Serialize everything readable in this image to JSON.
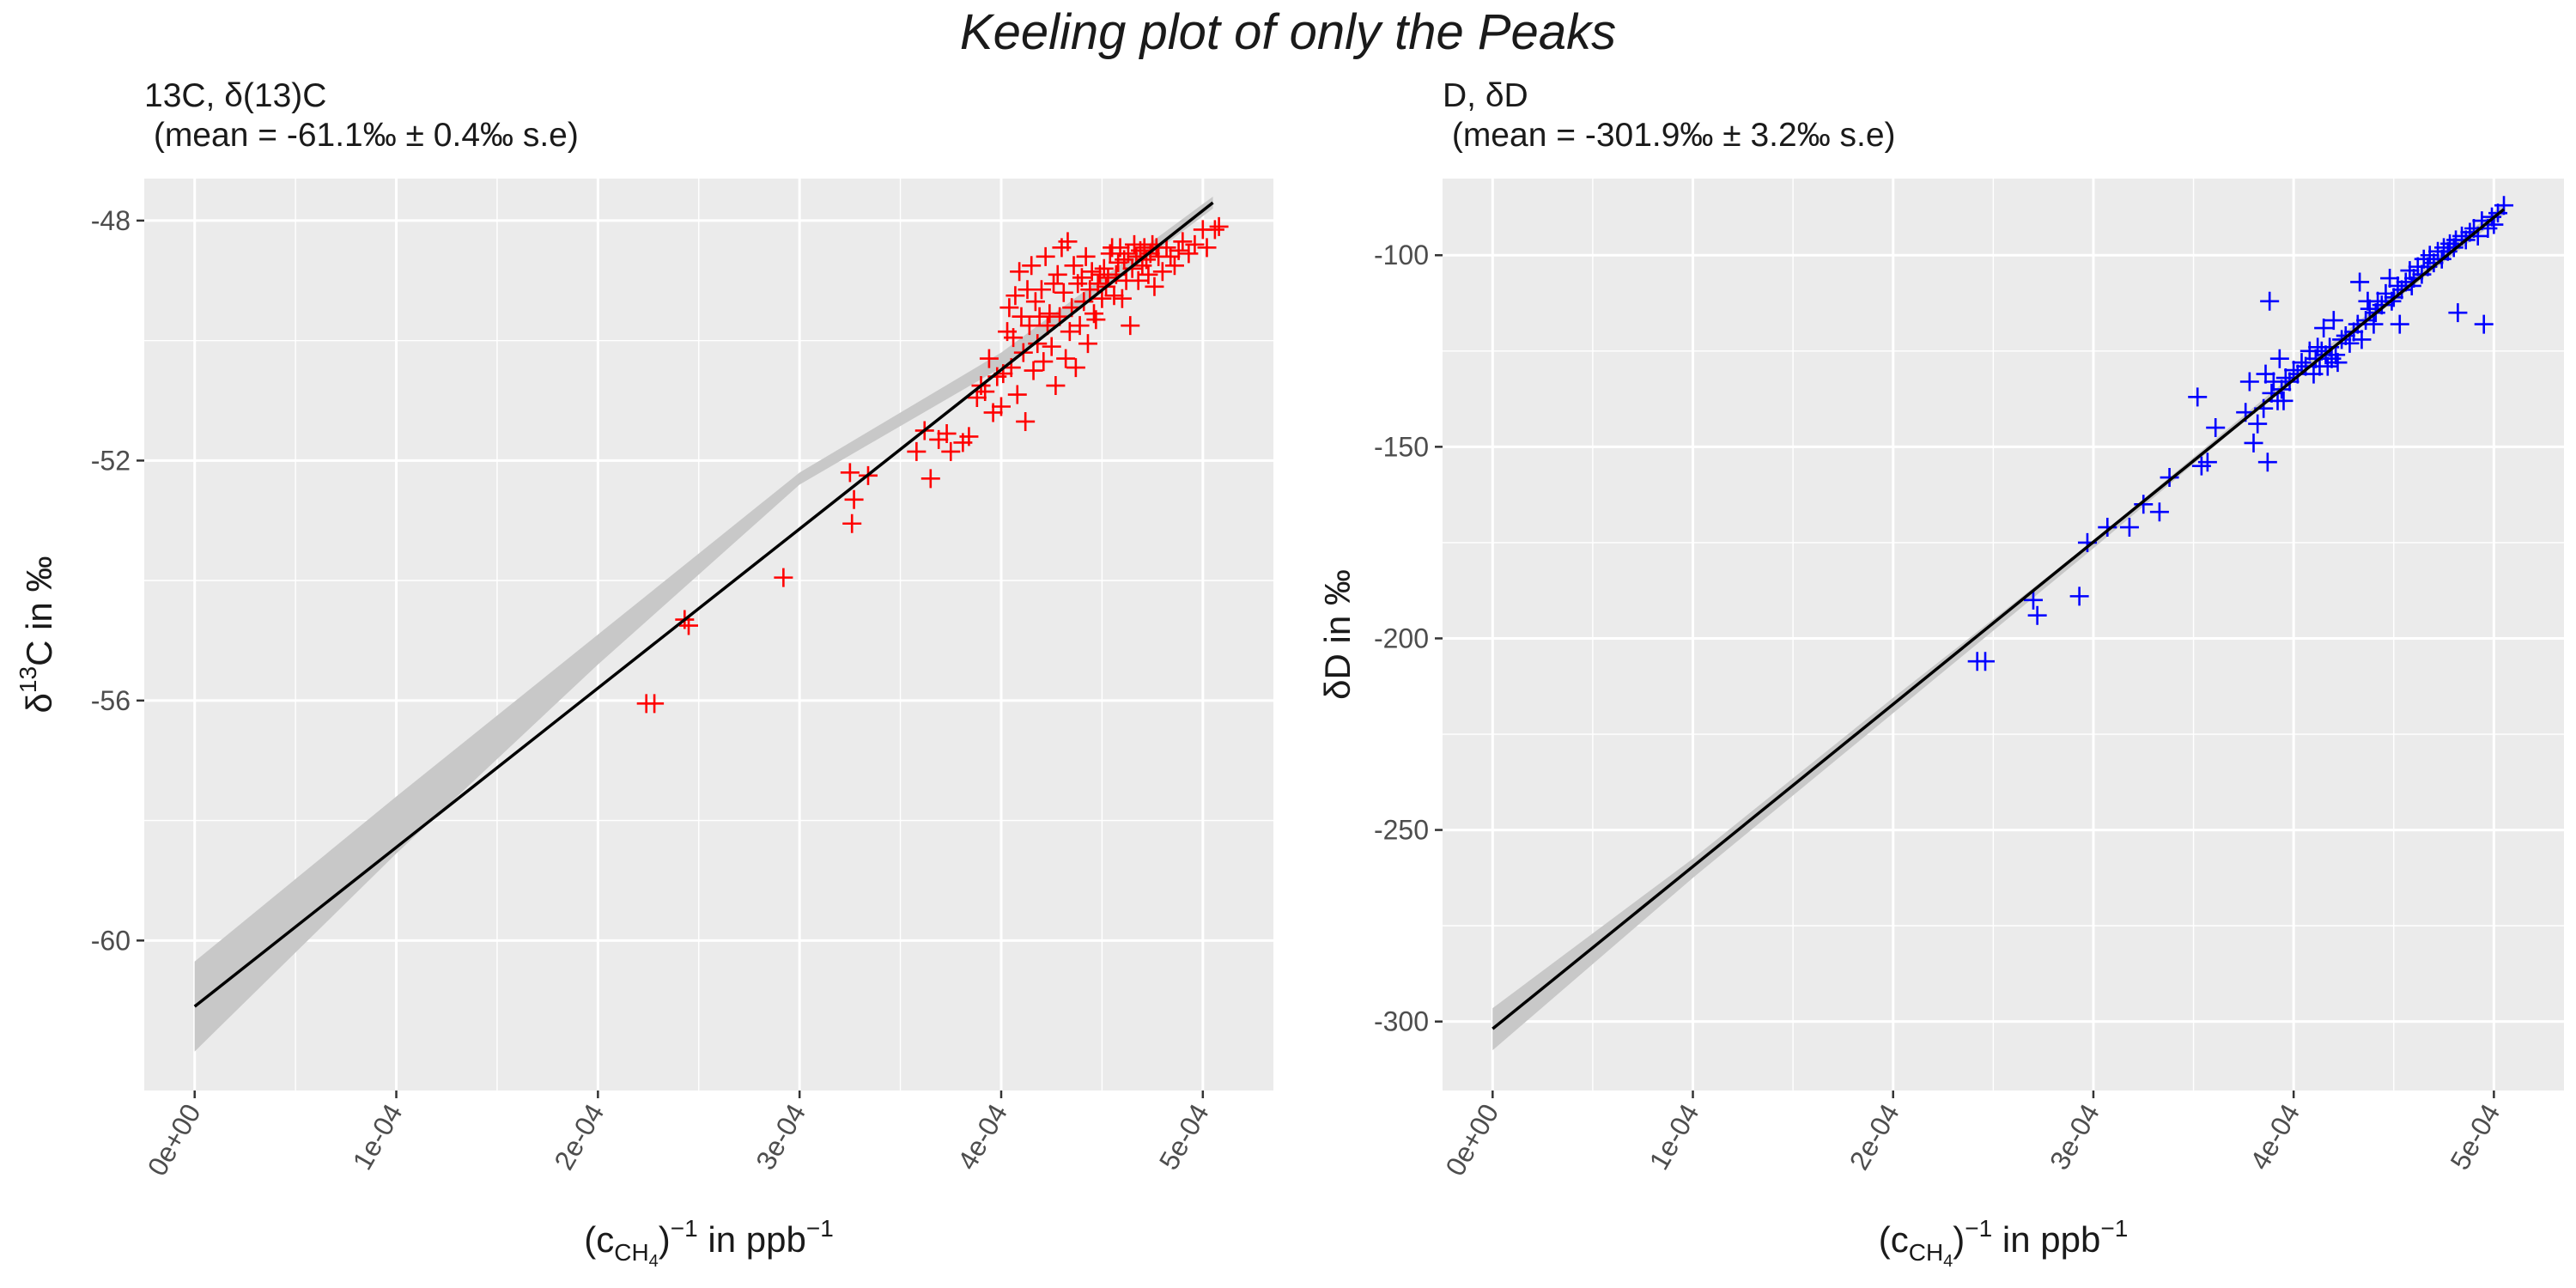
{
  "title": "Keeling plot of only the Peaks",
  "chart_data": [
    {
      "type": "scatter",
      "subtitle_line1": "13C, δ(13)C",
      "subtitle_line2": " (mean = -61.1‰ ± 0.4‰ s.e)",
      "ylabel_base": "δ",
      "ylabel_sup": "13",
      "ylabel_rest": "C in ‰",
      "xlabel": {
        "open": "(c",
        "sub": "CH",
        "subsub": "4",
        "close": ")",
        "sup": "−1",
        "mid": " in ppb",
        "sup2": "−1"
      },
      "xlim": [
        -2.5e-05,
        0.000535
      ],
      "ylim": [
        -62.5,
        -47.3
      ],
      "xticks": [
        0,
        0.0001,
        0.0002,
        0.0003,
        0.0004,
        0.0005
      ],
      "xtick_labels": [
        "0e+00",
        "1e-04",
        "2e-04",
        "3e-04",
        "4e-04",
        "5e-04"
      ],
      "yticks": [
        -60,
        -56,
        -52,
        -48
      ],
      "ytick_labels": [
        "-60",
        "-56",
        "-52",
        "-48"
      ],
      "grid": true,
      "marker": "+",
      "point_color": "#ff0000",
      "fit": {
        "x0": 0,
        "y0": -61.1,
        "x1": 0.000505,
        "y1": -47.7
      },
      "ci": [
        [
          0,
          -60.35,
          -61.85
        ],
        [
          0.0001,
          -57.6,
          -58.55
        ],
        [
          0.0002,
          -54.9,
          -55.4
        ],
        [
          0.0003,
          -52.2,
          -52.4
        ],
        [
          0.0004,
          -50.2,
          -50.45
        ],
        [
          0.000505,
          -47.6,
          -47.8
        ]
      ],
      "points": [
        [
          0.000224,
          -56.05
        ],
        [
          0.000228,
          -56.05
        ],
        [
          0.000243,
          -54.65
        ],
        [
          0.000245,
          -54.75
        ],
        [
          0.000292,
          -53.95
        ],
        [
          0.000325,
          -52.2
        ],
        [
          0.000326,
          -53.05
        ],
        [
          0.000327,
          -52.65
        ],
        [
          0.000334,
          -52.25
        ],
        [
          0.000358,
          -51.85
        ],
        [
          0.000362,
          -51.5
        ],
        [
          0.000365,
          -52.3
        ],
        [
          0.000369,
          -51.65
        ],
        [
          0.000373,
          -51.55
        ],
        [
          0.000375,
          -51.85
        ],
        [
          0.000381,
          -51.7
        ],
        [
          0.000384,
          -51.6
        ],
        [
          0.000388,
          -50.95
        ],
        [
          0.00039,
          -50.75
        ],
        [
          0.000392,
          -50.85
        ],
        [
          0.000394,
          -50.3
        ],
        [
          0.000396,
          -51.2
        ],
        [
          0.000398,
          -50.6
        ],
        [
          0.0004,
          -51.1
        ],
        [
          0.000401,
          -50.55
        ],
        [
          0.000403,
          -49.85
        ],
        [
          0.000404,
          -49.45
        ],
        [
          0.000405,
          -50.45
        ],
        [
          0.000406,
          -49.95
        ],
        [
          0.000407,
          -49.25
        ],
        [
          0.000408,
          -50.9
        ],
        [
          0.000409,
          -48.85
        ],
        [
          0.00041,
          -49.6
        ],
        [
          0.000411,
          -50.2
        ],
        [
          0.000412,
          -51.35
        ],
        [
          0.000413,
          -49.15
        ],
        [
          0.000414,
          -49.75
        ],
        [
          0.000415,
          -48.75
        ],
        [
          0.000416,
          -50.5
        ],
        [
          0.000417,
          -49.35
        ],
        [
          0.000418,
          -50.05
        ],
        [
          0.000419,
          -49.6
        ],
        [
          0.00042,
          -49.15
        ],
        [
          0.000421,
          -50.35
        ],
        [
          0.000422,
          -48.6
        ],
        [
          0.000423,
          -49.75
        ],
        [
          0.000424,
          -49.55
        ],
        [
          0.000425,
          -50.1
        ],
        [
          0.000426,
          -49.05
        ],
        [
          0.000427,
          -50.75
        ],
        [
          0.000428,
          -48.9
        ],
        [
          0.000429,
          -49.6
        ],
        [
          0.00043,
          -48.45
        ],
        [
          0.000431,
          -49.2
        ],
        [
          0.000432,
          -50.3
        ],
        [
          0.000433,
          -48.35
        ],
        [
          0.000434,
          -49.85
        ],
        [
          0.000435,
          -49.45
        ],
        [
          0.000436,
          -48.75
        ],
        [
          0.000437,
          -50.45
        ],
        [
          0.000438,
          -49.05
        ],
        [
          0.000439,
          -49.75
        ],
        [
          0.00044,
          -48.95
        ],
        [
          0.000441,
          -49.35
        ],
        [
          0.000442,
          -48.6
        ],
        [
          0.000443,
          -50.05
        ],
        [
          0.000444,
          -49.15
        ],
        [
          0.000445,
          -48.85
        ],
        [
          0.000446,
          -49.55
        ],
        [
          0.000447,
          -49.65
        ],
        [
          0.000448,
          -49.05
        ],
        [
          0.000449,
          -48.9
        ],
        [
          0.00045,
          -49.3
        ],
        [
          0.000451,
          -48.8
        ],
        [
          0.000452,
          -49.1
        ],
        [
          0.000453,
          -48.95
        ],
        [
          0.000454,
          -48.55
        ],
        [
          0.000455,
          -48.45
        ],
        [
          0.000456,
          -49.25
        ],
        [
          0.000457,
          -48.9
        ],
        [
          0.000458,
          -48.7
        ],
        [
          0.000459,
          -48.45
        ],
        [
          0.00046,
          -49.3
        ],
        [
          0.000461,
          -48.65
        ],
        [
          0.000462,
          -49.0
        ],
        [
          0.000463,
          -48.55
        ],
        [
          0.000464,
          -49.75
        ],
        [
          0.000465,
          -48.8
        ],
        [
          0.000466,
          -48.4
        ],
        [
          0.000467,
          -48.6
        ],
        [
          0.000468,
          -49.0
        ],
        [
          0.000469,
          -48.5
        ],
        [
          0.00047,
          -48.75
        ],
        [
          0.000471,
          -48.45
        ],
        [
          0.000472,
          -48.65
        ],
        [
          0.000473,
          -48.9
        ],
        [
          0.000474,
          -48.55
        ],
        [
          0.000475,
          -48.4
        ],
        [
          0.000476,
          -49.1
        ],
        [
          0.000477,
          -48.45
        ],
        [
          0.000478,
          -48.6
        ],
        [
          0.00048,
          -48.85
        ],
        [
          0.000482,
          -48.45
        ],
        [
          0.000484,
          -48.6
        ],
        [
          0.000486,
          -48.75
        ],
        [
          0.000488,
          -48.5
        ],
        [
          0.00049,
          -48.35
        ],
        [
          0.000493,
          -48.55
        ],
        [
          0.000496,
          -48.4
        ],
        [
          0.0005,
          -48.15
        ],
        [
          0.000502,
          -48.45
        ],
        [
          0.000506,
          -48.15
        ],
        [
          0.000508,
          -48.1
        ]
      ]
    },
    {
      "type": "scatter",
      "subtitle_line1": "D, δD",
      "subtitle_line2": " (mean = -301.9‰ ± 3.2‰ s.e)",
      "ylabel_base": "δD in ‰",
      "ylabel_sup": "",
      "ylabel_rest": "",
      "xlabel": {
        "open": "(c",
        "sub": "CH",
        "subsub": "4",
        "close": ")",
        "sup": "−1",
        "mid": " in ppb",
        "sup2": "−1"
      },
      "xlim": [
        -2.5e-05,
        0.000535
      ],
      "ylim": [
        -318,
        -80
      ],
      "xticks": [
        0,
        0.0001,
        0.0002,
        0.0003,
        0.0004,
        0.0005
      ],
      "xtick_labels": [
        "0e+00",
        "1e-04",
        "2e-04",
        "3e-04",
        "4e-04",
        "5e-04"
      ],
      "yticks": [
        -300,
        -250,
        -200,
        -150,
        -100
      ],
      "ytick_labels": [
        "-300",
        "-250",
        "-200",
        "-150",
        "-100"
      ],
      "grid": true,
      "marker": "+",
      "point_color": "#0000ff",
      "fit": {
        "x0": 0,
        "y0": -301.9,
        "x1": 0.000505,
        "y1": -88
      },
      "ci": [
        [
          0,
          -296.5,
          -307.5
        ],
        [
          0.0001,
          -257.5,
          -262.5
        ],
        [
          0.0002,
          -215.5,
          -219.5
        ],
        [
          0.0003,
          -174.5,
          -176.5
        ],
        [
          0.0004,
          -131.0,
          -132.5
        ],
        [
          0.000505,
          -86.5,
          -89.5
        ]
      ],
      "points": [
        [
          0.000242,
          -206
        ],
        [
          0.000246,
          -206
        ],
        [
          0.00027,
          -190
        ],
        [
          0.000272,
          -194
        ],
        [
          0.000293,
          -189
        ],
        [
          0.000297,
          -175
        ],
        [
          0.000307,
          -171
        ],
        [
          0.000318,
          -171
        ],
        [
          0.000325,
          -165
        ],
        [
          0.000333,
          -167
        ],
        [
          0.000338,
          -158
        ],
        [
          0.000352,
          -137
        ],
        [
          0.000354,
          -155
        ],
        [
          0.000357,
          -154
        ],
        [
          0.000361,
          -145
        ],
        [
          0.000376,
          -141
        ],
        [
          0.000378,
          -133
        ],
        [
          0.00038,
          -149
        ],
        [
          0.000382,
          -144
        ],
        [
          0.000385,
          -140
        ],
        [
          0.000386,
          -131
        ],
        [
          0.000387,
          -154
        ],
        [
          0.000388,
          -112
        ],
        [
          0.000389,
          -136
        ],
        [
          0.00039,
          -133
        ],
        [
          0.000392,
          -138
        ],
        [
          0.000393,
          -127
        ],
        [
          0.000394,
          -135
        ],
        [
          0.000395,
          -138
        ],
        [
          0.000396,
          -132
        ],
        [
          0.000398,
          -133
        ],
        [
          0.0004,
          -130
        ],
        [
          0.000402,
          -131
        ],
        [
          0.000404,
          -128
        ],
        [
          0.000406,
          -129
        ],
        [
          0.000408,
          -125
        ],
        [
          0.00041,
          -131
        ],
        [
          0.000411,
          -127
        ],
        [
          0.000412,
          -124
        ],
        [
          0.000413,
          -129
        ],
        [
          0.000414,
          -125
        ],
        [
          0.000415,
          -119
        ],
        [
          0.000416,
          -126
        ],
        [
          0.000417,
          -129
        ],
        [
          0.000418,
          -124
        ],
        [
          0.000419,
          -127
        ],
        [
          0.00042,
          -117
        ],
        [
          0.000421,
          -126
        ],
        [
          0.000422,
          -128
        ],
        [
          0.000424,
          -122
        ],
        [
          0.000426,
          -121
        ],
        [
          0.000428,
          -123
        ],
        [
          0.00043,
          -120
        ],
        [
          0.000432,
          -118
        ],
        [
          0.000433,
          -107
        ],
        [
          0.000434,
          -122
        ],
        [
          0.000436,
          -117
        ],
        [
          0.000437,
          -112
        ],
        [
          0.000438,
          -114
        ],
        [
          0.00044,
          -118
        ],
        [
          0.000441,
          -115
        ],
        [
          0.000442,
          -112
        ],
        [
          0.000444,
          -113
        ],
        [
          0.000446,
          -110
        ],
        [
          0.000448,
          -106
        ],
        [
          0.000449,
          -112
        ],
        [
          0.00045,
          -111
        ],
        [
          0.000452,
          -108
        ],
        [
          0.000453,
          -118
        ],
        [
          0.000454,
          -109
        ],
        [
          0.000456,
          -107
        ],
        [
          0.000458,
          -104
        ],
        [
          0.000459,
          -108
        ],
        [
          0.00046,
          -106
        ],
        [
          0.000462,
          -103
        ],
        [
          0.000464,
          -105
        ],
        [
          0.000465,
          -101
        ],
        [
          0.000467,
          -103
        ],
        [
          0.000468,
          -100
        ],
        [
          0.00047,
          -102
        ],
        [
          0.000472,
          -99
        ],
        [
          0.000474,
          -101
        ],
        [
          0.000475,
          -98
        ],
        [
          0.000477,
          -99
        ],
        [
          0.000478,
          -97
        ],
        [
          0.00048,
          -98
        ],
        [
          0.000481,
          -96
        ],
        [
          0.000482,
          -115
        ],
        [
          0.000484,
          -95
        ],
        [
          0.000486,
          -96
        ],
        [
          0.000488,
          -94
        ],
        [
          0.00049,
          -93
        ],
        [
          0.000492,
          -95
        ],
        [
          0.000494,
          -91
        ],
        [
          0.000495,
          -118
        ],
        [
          0.000497,
          -93
        ],
        [
          0.000499,
          -90
        ],
        [
          0.0005,
          -92
        ],
        [
          0.000502,
          -89
        ],
        [
          0.000505,
          -87
        ]
      ]
    }
  ]
}
